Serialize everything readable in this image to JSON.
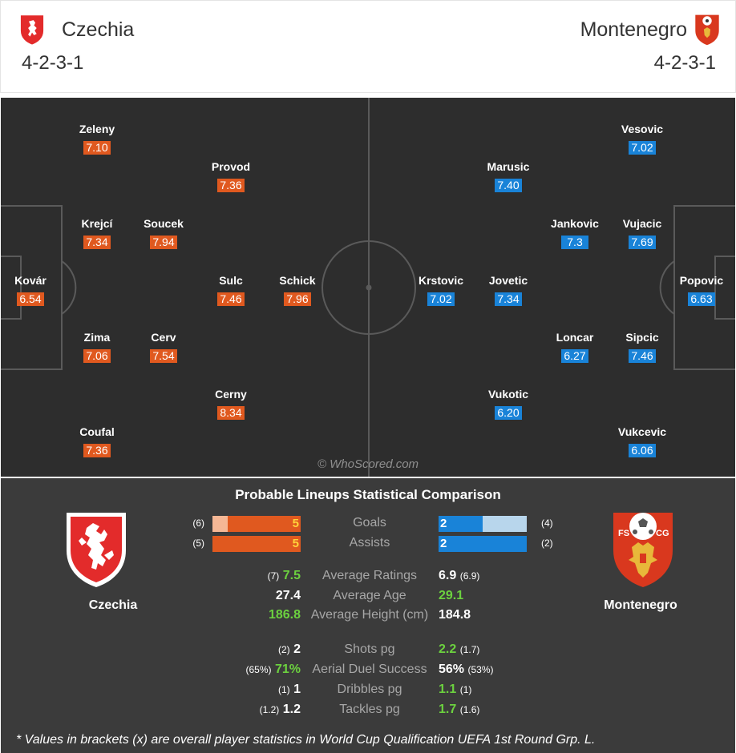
{
  "header": {
    "home": {
      "name": "Czechia",
      "formation": "4-2-3-1"
    },
    "away": {
      "name": "Montenegro",
      "formation": "4-2-3-1"
    }
  },
  "colors": {
    "home": "#e0591f",
    "away": "#1983d8",
    "better": "#6cd13f",
    "pitch": "#2d2d2d"
  },
  "pitch": {
    "watermark": "© WhoScored.com",
    "home_players": [
      {
        "name": "Kovár",
        "rating": "6.54"
      },
      {
        "name": "Zeleny",
        "rating": "7.10"
      },
      {
        "name": "Krejcí",
        "rating": "7.34"
      },
      {
        "name": "Zima",
        "rating": "7.06"
      },
      {
        "name": "Coufal",
        "rating": "7.36"
      },
      {
        "name": "Soucek",
        "rating": "7.94"
      },
      {
        "name": "Cerv",
        "rating": "7.54"
      },
      {
        "name": "Provod",
        "rating": "7.36"
      },
      {
        "name": "Sulc",
        "rating": "7.46"
      },
      {
        "name": "Cerny",
        "rating": "8.34"
      },
      {
        "name": "Schick",
        "rating": "7.96"
      }
    ],
    "away_players": [
      {
        "name": "Popovic",
        "rating": "6.63"
      },
      {
        "name": "Vesovic",
        "rating": "7.02"
      },
      {
        "name": "Vujacic",
        "rating": "7.69"
      },
      {
        "name": "Sipcic",
        "rating": "7.46"
      },
      {
        "name": "Vukcevic",
        "rating": "6.06"
      },
      {
        "name": "Jankovic",
        "rating": "7.3"
      },
      {
        "name": "Loncar",
        "rating": "6.27"
      },
      {
        "name": "Marusic",
        "rating": "7.40"
      },
      {
        "name": "Jovetic",
        "rating": "7.34"
      },
      {
        "name": "Vukotic",
        "rating": "6.20"
      },
      {
        "name": "Krstovic",
        "rating": "7.02"
      }
    ]
  },
  "comparison": {
    "title": "Probable Lineups Statistical Comparison",
    "home_name": "Czechia",
    "away_name": "Montenegro",
    "bar_stats": [
      {
        "label": "Goals",
        "home": "5",
        "home_prev": "(6)",
        "away": "2",
        "away_prev": "(4)",
        "home_fill": 0.83,
        "away_fill": 0.5
      },
      {
        "label": "Assists",
        "home": "5",
        "home_prev": "(5)",
        "away": "2",
        "away_prev": "(2)",
        "home_fill": 1.0,
        "away_fill": 1.0
      }
    ],
    "stats": [
      {
        "label": "Average Ratings",
        "home": "7.5",
        "home_sub": "(7)",
        "away": "6.9",
        "away_sub": "(6.9)",
        "better": "home"
      },
      {
        "label": "Average Age",
        "home": "27.4",
        "home_sub": "",
        "away": "29.1",
        "away_sub": "",
        "better": "away"
      },
      {
        "label": "Average Height (cm)",
        "home": "186.8",
        "home_sub": "",
        "away": "184.8",
        "away_sub": "",
        "better": "home"
      },
      {
        "label": "Shots pg",
        "home": "2",
        "home_sub": "(2)",
        "away": "2.2",
        "away_sub": "(1.7)",
        "better": "away"
      },
      {
        "label": "Aerial Duel Success",
        "home": "71%",
        "home_sub": "(65%)",
        "away": "56%",
        "away_sub": "(53%)",
        "better": "home"
      },
      {
        "label": "Dribbles pg",
        "home": "1",
        "home_sub": "(1)",
        "away": "1.1",
        "away_sub": "(1)",
        "better": "away"
      },
      {
        "label": "Tackles pg",
        "home": "1.2",
        "home_sub": "(1.2)",
        "away": "1.7",
        "away_sub": "(1.6)",
        "better": "away"
      }
    ],
    "footnote": "* Values in brackets (x) are overall player statistics in World Cup Qualification UEFA 1st Round Grp. L."
  },
  "icons": {
    "home_crest": "czech-lion-crest-icon",
    "away_crest": "montenegro-fscg-crest-icon"
  }
}
